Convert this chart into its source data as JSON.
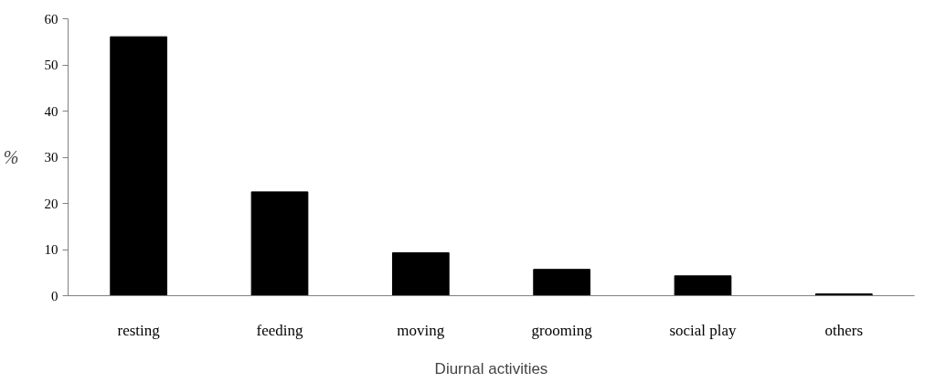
{
  "chart_data": {
    "type": "bar",
    "xlabel": "Diurnal activities",
    "ylabel": "%",
    "categories": [
      "resting",
      "feeding",
      "moving",
      "grooming",
      "social play",
      "others"
    ],
    "values": [
      56.1,
      22.5,
      9.3,
      5.7,
      4.3,
      0.4
    ],
    "color": "#000000",
    "ylim": [
      0,
      60
    ],
    "yticks": [
      0,
      10,
      20,
      30,
      40,
      50,
      60
    ],
    "grid": false
  }
}
